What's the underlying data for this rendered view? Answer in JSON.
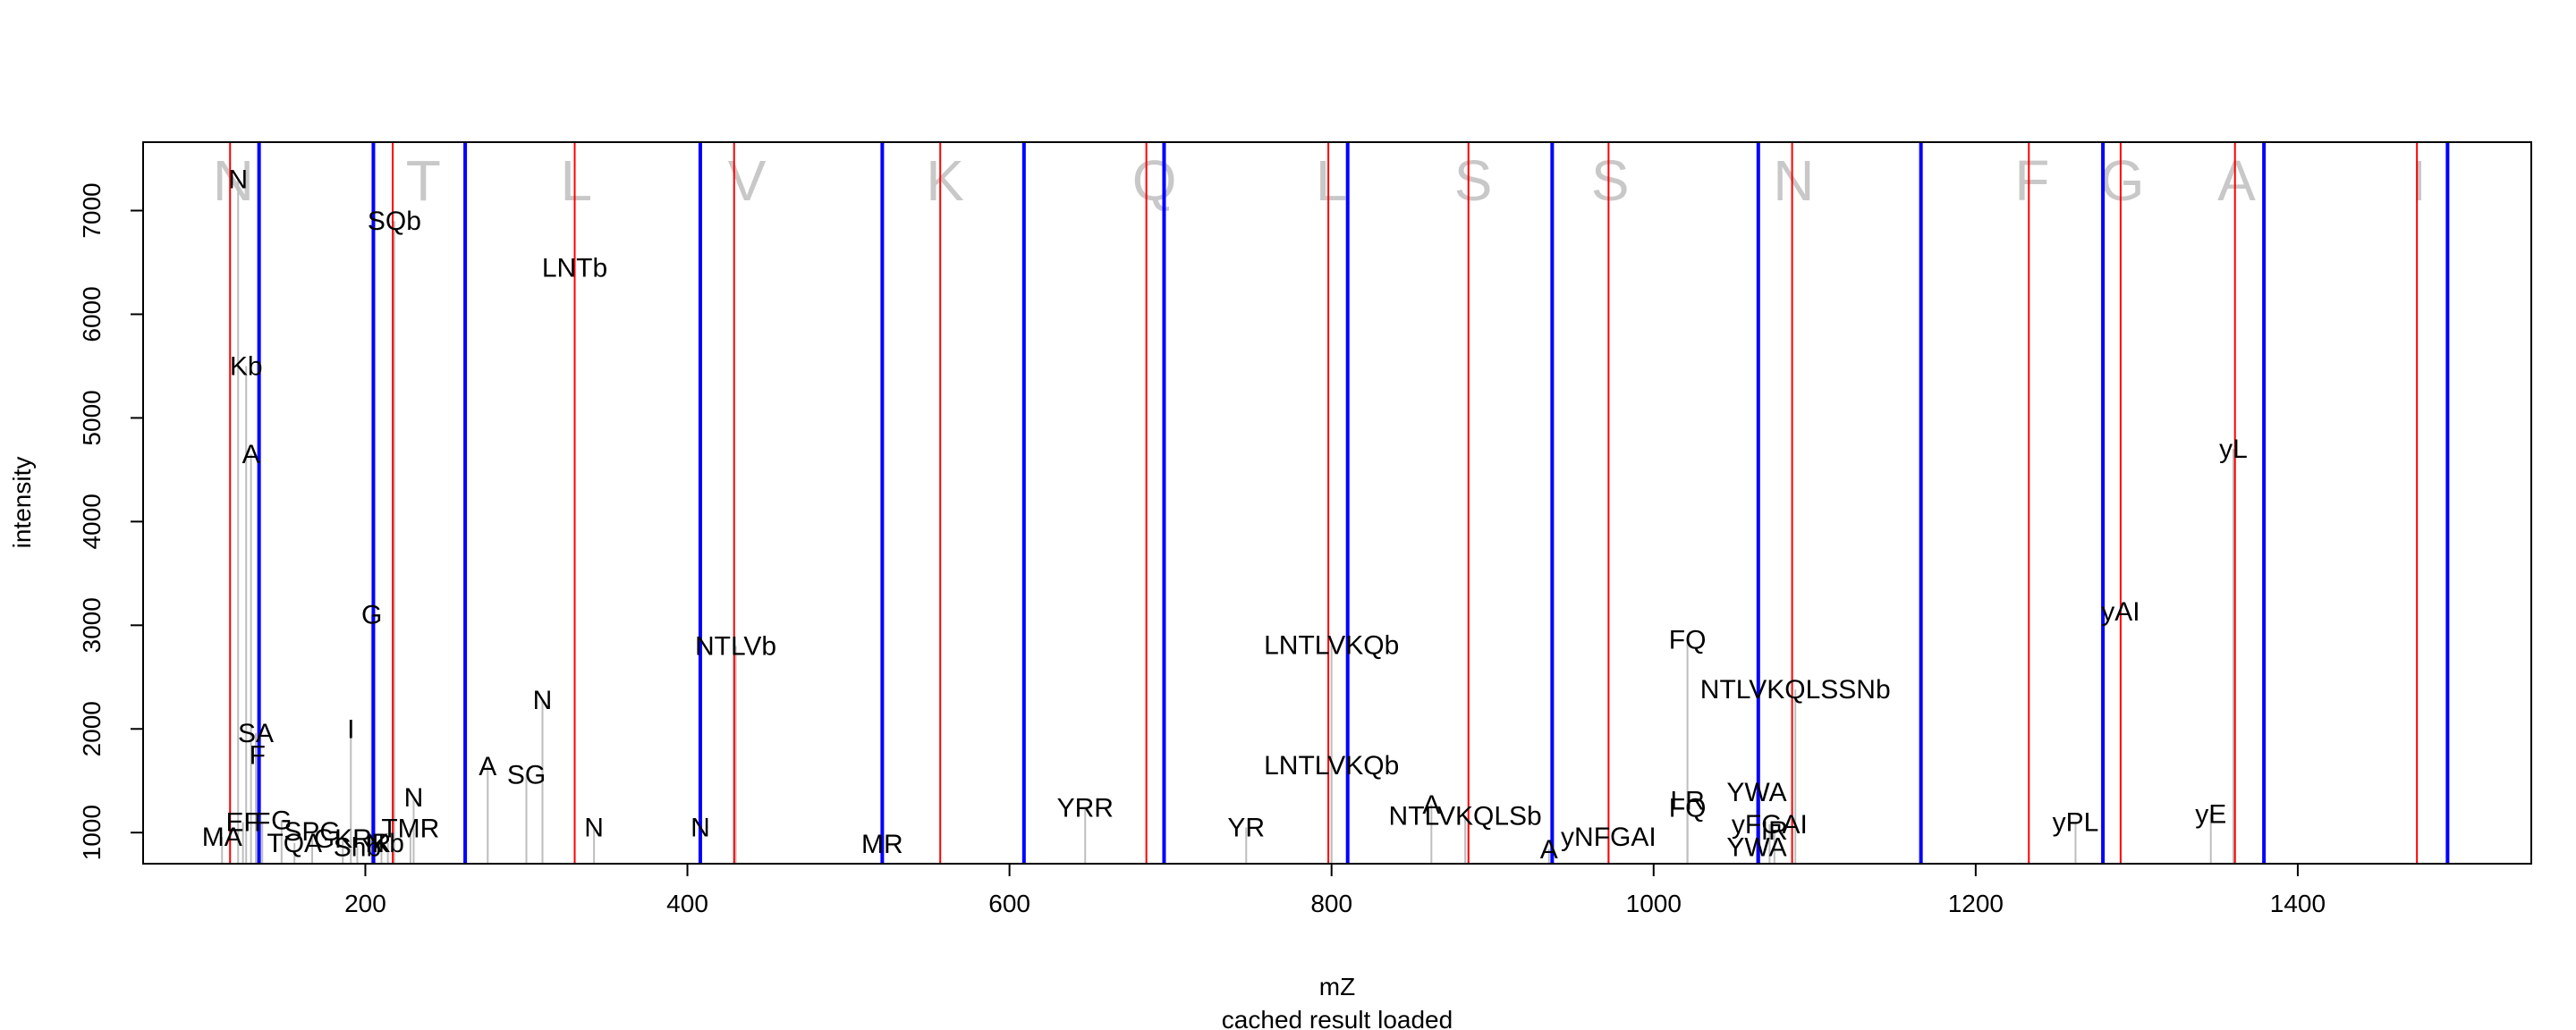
{
  "chart_data": {
    "type": "bar",
    "xlabel": "mZ",
    "subtitle": "cached result loaded",
    "ylabel": "intensity",
    "xlim": [
      62,
      1545
    ],
    "ylim": [
      700,
      7660
    ],
    "x_ticks": [
      200,
      400,
      600,
      800,
      1000,
      1200,
      1400
    ],
    "y_ticks": [
      1000,
      2000,
      3000,
      4000,
      5000,
      6000,
      7000
    ],
    "grid": false,
    "colors": {
      "b_ion_lines": "#ff0000",
      "y_ion_lines": "#0000ff",
      "peaks": "#bebebe",
      "residues": "#c8c8c8"
    },
    "residues": [
      {
        "letter": "N",
        "x": 118
      },
      {
        "letter": "T",
        "x": 236
      },
      {
        "letter": "L",
        "x": 331
      },
      {
        "letter": "V",
        "x": 437
      },
      {
        "letter": "K",
        "x": 560
      },
      {
        "letter": "Q",
        "x": 690
      },
      {
        "letter": "L",
        "x": 800
      },
      {
        "letter": "S",
        "x": 888
      },
      {
        "letter": "S",
        "x": 973
      },
      {
        "letter": "N",
        "x": 1087
      },
      {
        "letter": "F",
        "x": 1235
      },
      {
        "letter": "G",
        "x": 1291
      },
      {
        "letter": "A",
        "x": 1362
      },
      {
        "letter": "I",
        "x": 1475
      }
    ],
    "b_ion_lines": [
      116,
      217,
      330,
      429,
      557,
      685,
      798,
      885,
      972,
      1086,
      1233,
      1290,
      1361,
      1474
    ],
    "y_ion_lines": [
      134,
      205,
      262,
      408,
      521,
      609,
      696,
      810,
      937,
      1065,
      1166,
      1279,
      1379,
      1493
    ],
    "peaks": [
      {
        "x": 111,
        "y": 960,
        "label": "MA"
      },
      {
        "x": 121,
        "y": 7300,
        "label": "N"
      },
      {
        "x": 124,
        "y": 1100,
        "label": "EF"
      },
      {
        "x": 126,
        "y": 5500,
        "label": "Kb"
      },
      {
        "x": 129,
        "y": 4650,
        "label": "A"
      },
      {
        "x": 132,
        "y": 1960,
        "label": "SA"
      },
      {
        "x": 133,
        "y": 1750,
        "label": "F"
      },
      {
        "x": 136,
        "y": 1100,
        "label": "F"
      },
      {
        "x": 148,
        "y": 1120,
        "label": "G"
      },
      {
        "x": 156,
        "y": 900,
        "label": "TQA"
      },
      {
        "x": 167,
        "y": 1010,
        "label": "SPG"
      },
      {
        "x": 191,
        "y": 2000,
        "label": "I"
      },
      {
        "x": 186,
        "y": 940,
        "label": "GKR"
      },
      {
        "x": 195,
        "y": 860,
        "label": "Shb"
      },
      {
        "x": 204,
        "y": 3100,
        "label": "G"
      },
      {
        "x": 206,
        "y": 900,
        "label": "N"
      },
      {
        "x": 210,
        "y": 900,
        "label": "R"
      },
      {
        "x": 214,
        "y": 900,
        "label": "Kb"
      },
      {
        "x": 218,
        "y": 6900,
        "label": "SQb"
      },
      {
        "x": 228,
        "y": 1040,
        "label": "TMR"
      },
      {
        "x": 230,
        "y": 1340,
        "label": "N"
      },
      {
        "x": 276,
        "y": 1640,
        "label": "A"
      },
      {
        "x": 300,
        "y": 1560,
        "label": "SG"
      },
      {
        "x": 310,
        "y": 2280,
        "label": "N"
      },
      {
        "x": 330,
        "y": 6450,
        "label": "LNTb"
      },
      {
        "x": 342,
        "y": 1050,
        "label": "N"
      },
      {
        "x": 408,
        "y": 1050,
        "label": "N"
      },
      {
        "x": 430,
        "y": 2800,
        "label": "NTLVb"
      },
      {
        "x": 521,
        "y": 890,
        "label": "MR"
      },
      {
        "x": 647,
        "y": 1240,
        "label": "YRR"
      },
      {
        "x": 747,
        "y": 1050,
        "label": "YR"
      },
      {
        "x": 800,
        "y": 2810,
        "label": "LNTLVKQb"
      },
      {
        "x": 800,
        "y": 1650,
        "label": "LNTLVKQb"
      },
      {
        "x": 862,
        "y": 1270,
        "label": "A"
      },
      {
        "x": 883,
        "y": 1160,
        "label": "NTLVKQLSb"
      },
      {
        "x": 935,
        "y": 840,
        "label": "A"
      },
      {
        "x": 972,
        "y": 960,
        "label": "yNFGAI"
      },
      {
        "x": 1021,
        "y": 2860,
        "label": "FQ"
      },
      {
        "x": 1021,
        "y": 1310,
        "label": "LR"
      },
      {
        "x": 1021,
        "y": 1240,
        "label": "FQ"
      },
      {
        "x": 1088,
        "y": 2380,
        "label": "NTLVKQLSSNb"
      },
      {
        "x": 1064,
        "y": 1390,
        "label": "YWA"
      },
      {
        "x": 1064,
        "y": 860,
        "label": "YWA"
      },
      {
        "x": 1072,
        "y": 1080,
        "label": "yFGAI"
      },
      {
        "x": 1075,
        "y": 1020,
        "label": "IR"
      },
      {
        "x": 1262,
        "y": 1100,
        "label": "yPL"
      },
      {
        "x": 1290,
        "y": 3130,
        "label": "yAI"
      },
      {
        "x": 1346,
        "y": 1180,
        "label": "yE"
      },
      {
        "x": 1360,
        "y": 4700,
        "label": "yL"
      }
    ]
  }
}
